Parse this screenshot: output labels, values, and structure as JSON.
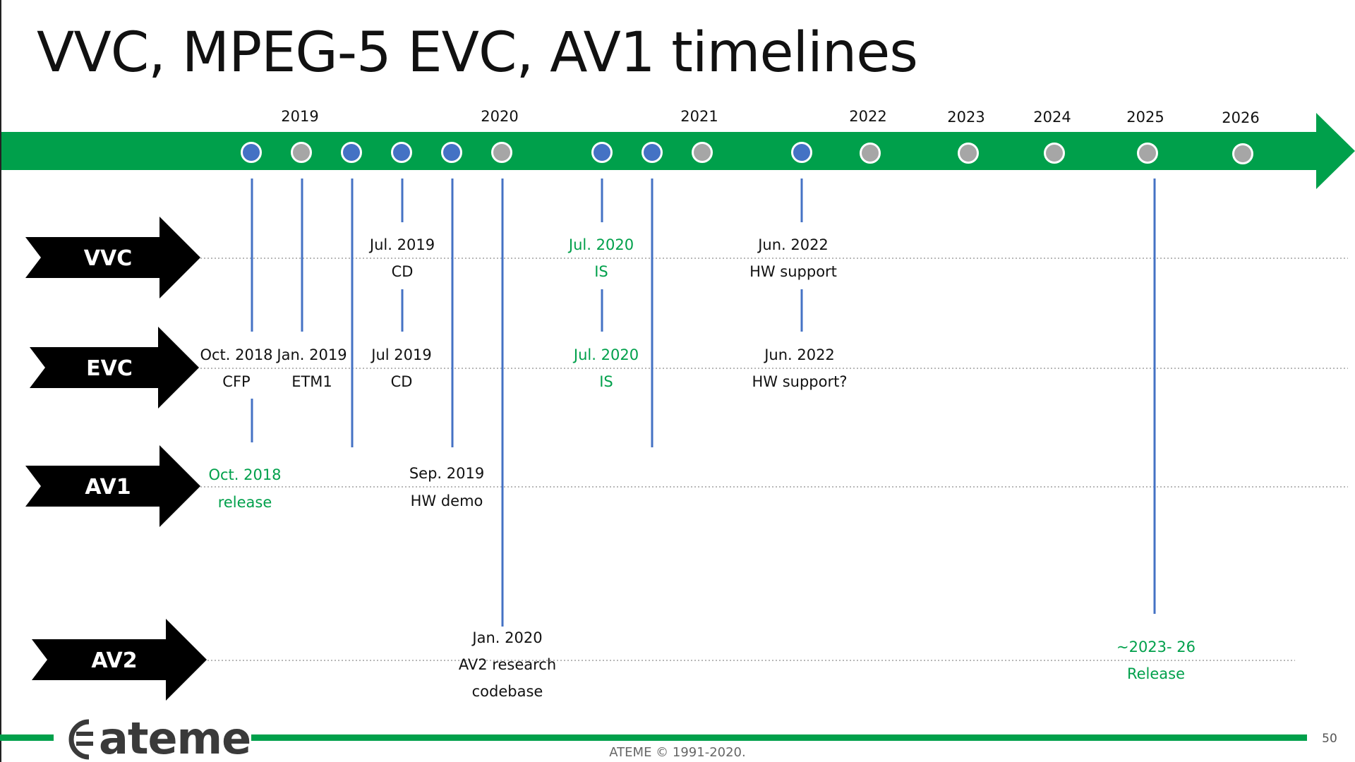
{
  "title": "VVC, MPEG-5 EVC, AV1 timelines",
  "years": [
    {
      "label": "2019"
    },
    {
      "label": "2020"
    },
    {
      "label": "2021"
    },
    {
      "label": "2022"
    },
    {
      "label": "2023"
    },
    {
      "label": "2024"
    },
    {
      "label": "2025"
    },
    {
      "label": "2026"
    }
  ],
  "timeline_dots": [
    {
      "color": "blue"
    },
    {
      "color": "gray"
    },
    {
      "color": "blue"
    },
    {
      "color": "blue"
    },
    {
      "color": "blue"
    },
    {
      "color": "gray"
    },
    {
      "color": "blue"
    },
    {
      "color": "blue"
    },
    {
      "color": "gray"
    },
    {
      "color": "blue"
    },
    {
      "color": "gray"
    },
    {
      "color": "gray"
    },
    {
      "color": "gray"
    },
    {
      "color": "gray"
    },
    {
      "color": "gray"
    }
  ],
  "tracks": [
    {
      "label": "VVC"
    },
    {
      "label": "EVC"
    },
    {
      "label": "AV1"
    },
    {
      "label": "AV2"
    }
  ],
  "milestones": [
    {
      "date": "Jul. 2019",
      "event": "CD",
      "color": "black"
    },
    {
      "date": "Jul. 2020",
      "event": "IS",
      "color": "green"
    },
    {
      "date": "Jun. 2022",
      "event": "HW support",
      "color": "black"
    },
    {
      "date": "Oct. 2018",
      "event": "CFP",
      "color": "black"
    },
    {
      "date": "Jan. 2019",
      "event": "ETM1",
      "color": "black"
    },
    {
      "date": "Jul 2019",
      "event": "CD",
      "color": "black"
    },
    {
      "date": "Jul. 2020",
      "event": "IS",
      "color": "green"
    },
    {
      "date": "Jun. 2022",
      "event": "HW support?",
      "color": "black"
    },
    {
      "date": "Oct. 2018",
      "event": "release",
      "color": "green"
    },
    {
      "date": "Sep. 2019",
      "event": "HW demo",
      "color": "black"
    },
    {
      "date": "Jan. 2020",
      "event": "AV2 research",
      "event2": "codebase",
      "color": "black"
    },
    {
      "date": "~2023- 26",
      "event": "Release",
      "color": "green"
    }
  ],
  "footer": {
    "logo": "ateme",
    "copyright": "ATEME © 1991-2020.",
    "page_number": "50"
  },
  "colors": {
    "green": "#00A04B",
    "blue": "#4472C4",
    "gray": "#A6A6A6",
    "milestone_green": "#00A04B",
    "arrow_black": "#000000"
  }
}
